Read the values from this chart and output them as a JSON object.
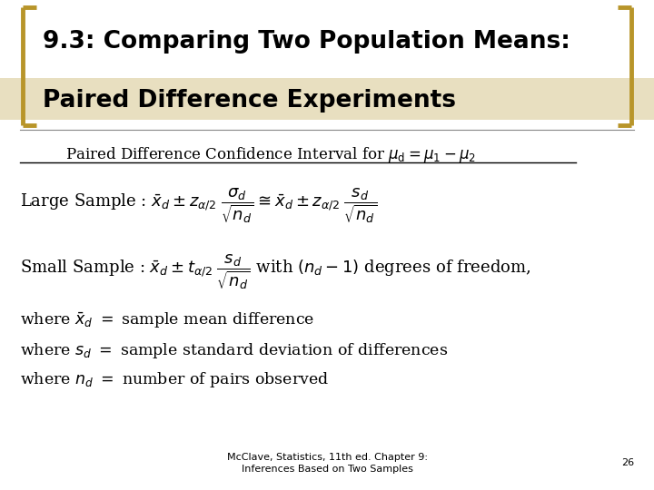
{
  "bg_color": "#ffffff",
  "title_line1": "9.3: Comparing Two Population Means:",
  "title_line2": "Paired Difference Experiments",
  "title_bg_color": "#e8dfc0",
  "title_bracket_color": "#b8952a",
  "title_fontsize": 19,
  "body_fontsize": 13,
  "footer_text": "McClave, Statistics, 11th ed. Chapter 9:\nInferences Based on Two Samples",
  "footer_page": "26",
  "footer_fontsize": 8
}
